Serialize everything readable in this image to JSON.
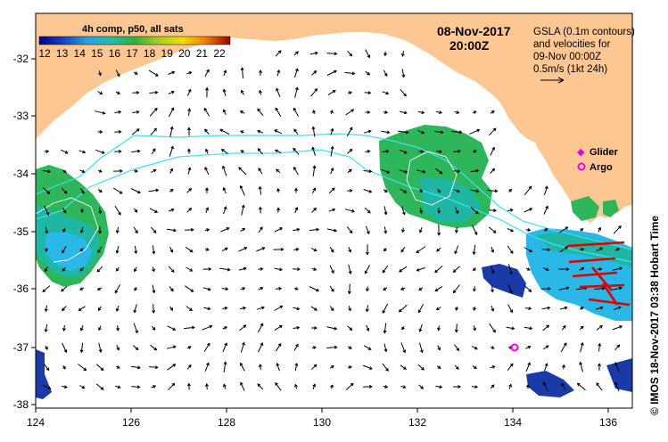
{
  "header": {
    "colorbar_title": "4h comp, p50, all sats",
    "date": "08-Nov-2017",
    "time": "20:00Z"
  },
  "info": {
    "line1": "GSLA (0.1m contours)",
    "line2": "and velocities for",
    "line3": "09-Nov 00:00Z",
    "scale_label": "0.5m/s (1kt 24h)"
  },
  "legend": {
    "glider_label": "Glider",
    "argo_label": "Argo",
    "glider_color": "#dd00dd",
    "argo_color": "#ee00ee"
  },
  "credit": "© IMOS 18-Nov-2017 03:38 Hobart Time",
  "colorbar": {
    "ticks": [
      "12",
      "13",
      "14",
      "15",
      "16",
      "17",
      "18",
      "19",
      "20",
      "21",
      "22"
    ]
  },
  "axes": {
    "x_ticks": [
      "124",
      "126",
      "128",
      "130",
      "132",
      "134",
      "136"
    ],
    "y_ticks": [
      "-32",
      "-33",
      "-34",
      "-35",
      "-36",
      "-37",
      "-38"
    ]
  },
  "colors": {
    "land": "#fdc794",
    "sst_green": "#2fb55a",
    "sst_teal": "#1fb7a4",
    "sst_cyan": "#29b8e8",
    "sst_blue": "#1a3aa8",
    "contour": "#3fe0f0",
    "velocity_red": "#e00000"
  }
}
